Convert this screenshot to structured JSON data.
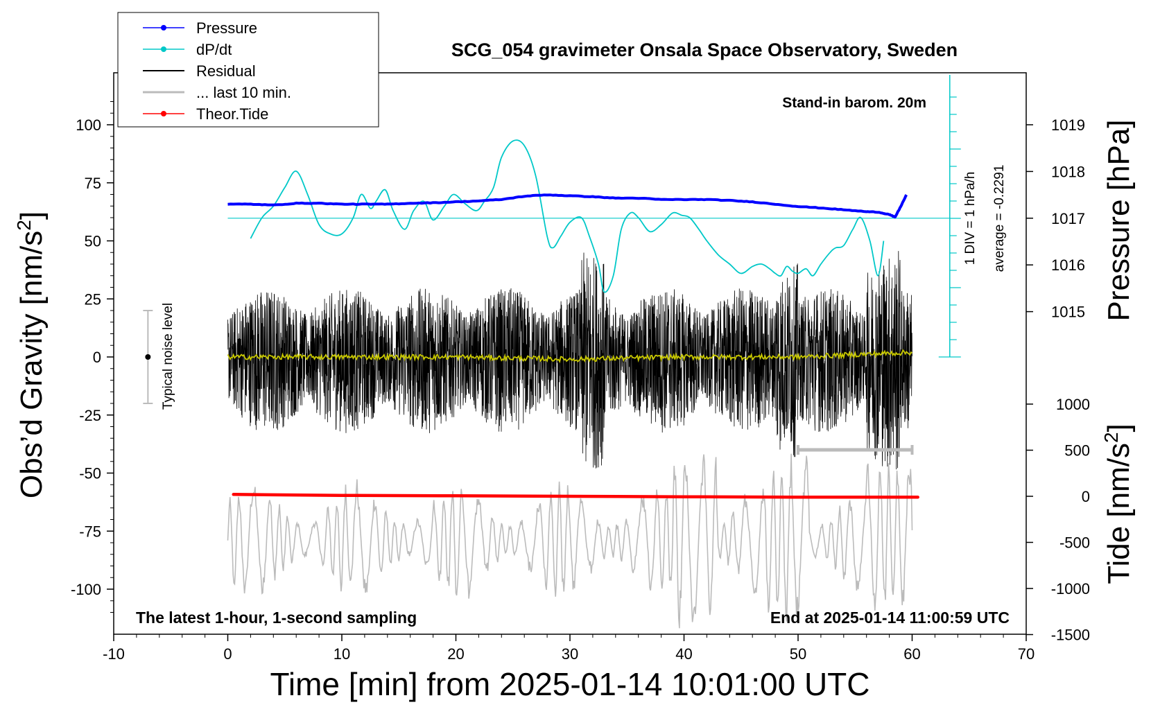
{
  "chart_data": {
    "type": "line",
    "title": "SCG_054 gravimeter Onsala Space Observatory, Sweden",
    "xlabel": "Time [min] from 2025-01-14 10:01:00 UTC",
    "ylabel_left_main": "Obs’d Gravity [nm/s",
    "ylabel_left_sup": "2",
    "ylabel_left_tail": "]",
    "ylabel_right_pressure": "Pressure [hPa]",
    "ylabel_right_tide_main": "Tide [nm/s",
    "ylabel_right_tide_sup": "2",
    "ylabel_right_tide_tail": "]",
    "xlim": [
      -10,
      70
    ],
    "ylim_gravity": [
      -120,
      120
    ],
    "ylim_pressure_visible": [
      1014.5,
      1019.5
    ],
    "ylim_tide_visible": [
      -1500,
      1000
    ],
    "x_ticks": [
      "-10",
      "0",
      "10",
      "20",
      "30",
      "40",
      "50",
      "60",
      "70"
    ],
    "x_tick_values": [
      -10,
      0,
      10,
      20,
      30,
      40,
      50,
      60,
      70
    ],
    "gravity_ticks": [
      "100",
      "75",
      "50",
      "25",
      "0",
      "-25",
      "-50",
      "-75",
      "-100"
    ],
    "gravity_tick_values": [
      100,
      75,
      50,
      25,
      0,
      -25,
      -50,
      -75,
      -100
    ],
    "pressure_ticks": [
      "1019",
      "1018",
      "1017",
      "1016",
      "1015"
    ],
    "pressure_tick_values": [
      1019,
      1018,
      1017,
      1016,
      1015
    ],
    "tide_ticks": [
      "1000",
      "500",
      "0",
      "-500",
      "-1000",
      "-1500"
    ],
    "tide_tick_values": [
      1000,
      500,
      0,
      -500,
      -1000,
      -1500
    ],
    "legend": {
      "position": "top-left",
      "entries": [
        {
          "label": "Pressure",
          "color": "#0000ff",
          "marker": true
        },
        {
          "label": "dP/dt",
          "color": "#00c8c8",
          "marker": true
        },
        {
          "label": "Residual",
          "color": "#000000",
          "marker": false
        },
        {
          "label": "... last 10 min.",
          "color": "#bbbbbb",
          "marker": false
        },
        {
          "label": "Theor.Tide",
          "color": "#ff0000",
          "marker": true
        }
      ]
    },
    "annotations": {
      "barometer_note": "Stand-in barom. 20m",
      "bottom_left": "The latest 1-hour, 1-second sampling",
      "bottom_right": "End at 2025-01-14 11:00:59 UTC",
      "noise_label": "Typical noise level",
      "dpdt_scale": "1 DIV = 1 hPa/h",
      "dpdt_average": "average = -0.2291"
    },
    "noise_level_bar": {
      "x": -7,
      "center": 0,
      "half_range": 20
    },
    "dpdt_zero_line_pressure_units": 1017,
    "series": [
      {
        "name": "Pressure",
        "axis": "pressure",
        "color": "#0000ff",
        "x": [
          0,
          2,
          4,
          6,
          8,
          10,
          12,
          14,
          16,
          18,
          20,
          22,
          24,
          26,
          28,
          30,
          32,
          34,
          36,
          38,
          40,
          42,
          44,
          46,
          48,
          50,
          52,
          54,
          56,
          57,
          58,
          58.5,
          59,
          59.5
        ],
        "values": [
          1017.3,
          1017.3,
          1017.28,
          1017.32,
          1017.32,
          1017.3,
          1017.3,
          1017.3,
          1017.32,
          1017.33,
          1017.35,
          1017.37,
          1017.4,
          1017.47,
          1017.5,
          1017.48,
          1017.46,
          1017.43,
          1017.43,
          1017.4,
          1017.4,
          1017.4,
          1017.38,
          1017.35,
          1017.3,
          1017.25,
          1017.22,
          1017.18,
          1017.14,
          1017.13,
          1017.08,
          1017.02,
          1017.25,
          1017.5
        ]
      },
      {
        "name": "dP/dt",
        "axis": "gravity",
        "color": "#00c8c8",
        "x": [
          2,
          3,
          4,
          5,
          6,
          7,
          8,
          9,
          10,
          11,
          11.7,
          12.5,
          13,
          13.8,
          14.5,
          15.5,
          16.3,
          17.2,
          18,
          19,
          19.8,
          20.8,
          21.8,
          22.5,
          23.3,
          24,
          25,
          26,
          27,
          28,
          28.5,
          29.2,
          30,
          31,
          31.7,
          32.5,
          33,
          33.8,
          34.5,
          35.3,
          36,
          37,
          38,
          39,
          39.8,
          40.5,
          41.3,
          42,
          43,
          44,
          45,
          46,
          46.8,
          47.5,
          48,
          48.5,
          49,
          49.5,
          50,
          50.7,
          51.3,
          52,
          52.8,
          53.3,
          54,
          54.8,
          55.5,
          56.3,
          57,
          57.5
        ],
        "values": [
          51,
          60,
          65,
          73,
          80,
          70,
          57,
          53,
          53,
          60,
          70,
          64,
          67,
          72,
          63,
          55,
          63,
          67,
          59,
          65,
          70,
          66,
          63,
          67,
          73,
          86,
          93,
          91,
          78,
          52,
          47,
          52,
          58,
          60,
          52,
          40,
          28,
          35,
          55,
          62,
          60,
          54,
          57,
          62,
          61,
          60,
          55,
          50,
          44,
          40,
          36,
          39,
          40,
          38,
          36,
          35,
          39,
          37,
          36,
          38,
          35,
          40,
          45,
          47,
          48,
          55,
          60,
          50,
          35,
          50
        ]
      },
      {
        "name": "Residual",
        "axis": "gravity",
        "color": "#000000",
        "x_range": [
          0,
          60
        ],
        "amplitude_envelope": [
          -55,
          50
        ]
      },
      {
        "name": "Residual (smoothed)",
        "axis": "gravity",
        "color": "#c8c800",
        "x": [
          0,
          10,
          20,
          30,
          40,
          50,
          60
        ],
        "values": [
          0,
          0,
          0,
          -1,
          0,
          0,
          2
        ]
      },
      {
        "name": "... last 10 min.",
        "axis": "gravity",
        "color": "#bbbbbb",
        "x_range": [
          0,
          60
        ],
        "amplitude_envelope": [
          -118,
          -40
        ]
      },
      {
        "name": "Theor.Tide",
        "axis": "tide",
        "color": "#ff0000",
        "x": [
          0.5,
          10,
          20,
          30,
          40,
          50,
          60.5
        ],
        "values": [
          20,
          10,
          5,
          0,
          -5,
          -10,
          -10
        ]
      }
    ],
    "last10_bar": {
      "x": [
        50,
        60
      ],
      "gravity": -40
    }
  }
}
